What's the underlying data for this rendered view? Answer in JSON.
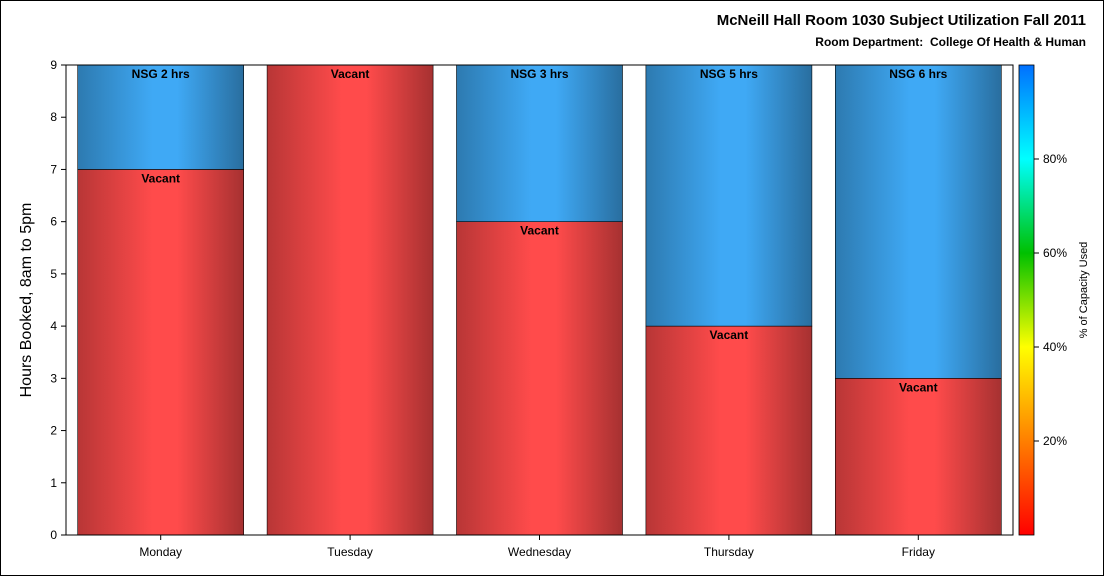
{
  "chart_data": {
    "type": "bar",
    "stacked": true,
    "title": "McNeill Hall Room 1030 Subject Utilization Fall 2011",
    "subtitle": "Room Department:  College Of Health & Human",
    "xlabel": "",
    "ylabel": "Hours Booked, 8am to 5pm",
    "ylim": [
      0,
      9
    ],
    "yticks": [
      0,
      1,
      2,
      3,
      4,
      5,
      6,
      7,
      8,
      9
    ],
    "categories": [
      "Monday",
      "Tuesday",
      "Wednesday",
      "Thursday",
      "Friday"
    ],
    "series": [
      {
        "values": [
          7,
          9,
          6,
          4,
          3
        ],
        "labels": [
          "Vacant",
          "Vacant",
          "Vacant",
          "Vacant",
          "Vacant"
        ],
        "color": "#ff4b4b"
      },
      {
        "values": [
          2,
          0,
          3,
          5,
          6
        ],
        "labels": [
          "NSG 2 hrs",
          "",
          "NSG 3 hrs",
          "NSG 5 hrs",
          "NSG 6 hrs"
        ],
        "color": "#3fa9f5"
      }
    ],
    "colorbar": {
      "title": "% of Capacity Used",
      "ticks": [
        "20%",
        "40%",
        "60%",
        "80%"
      ],
      "tick_values": [
        20,
        40,
        60,
        80
      ],
      "range": [
        0,
        100
      ],
      "colors": [
        "#ff0000",
        "#ff7f00",
        "#ffff00",
        "#00c000",
        "#00ffff",
        "#0070ff"
      ]
    },
    "grid": false
  }
}
